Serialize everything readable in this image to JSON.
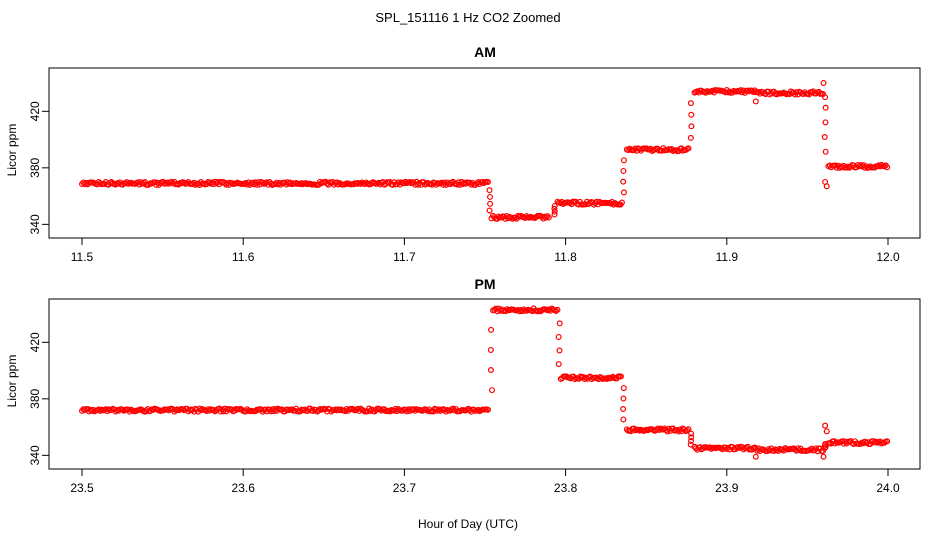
{
  "figure": {
    "title": "SPL_151116  1 Hz CO2 Zoomed",
    "xlabel": "Hour of Day (UTC)"
  },
  "colors": {
    "points": "#ff0000",
    "axes": "#000000",
    "background": "#ffffff"
  },
  "chart_data": [
    {
      "type": "scatter",
      "title": "AM",
      "xlabel": "",
      "ylabel": "Licor ppm",
      "xlim": [
        11.5,
        12.0
      ],
      "ylim": [
        336,
        445
      ],
      "xticks": [
        "11.5",
        "11.6",
        "11.7",
        "11.8",
        "11.9",
        "12.0"
      ],
      "yticks": [
        "340",
        "380",
        "420"
      ],
      "grid": false,
      "segments": [
        {
          "x": [
            11.5,
            11.752
          ],
          "y": 369
        },
        {
          "x": [
            11.754,
            11.79
          ],
          "y": 345
        },
        {
          "x": [
            11.795,
            11.835
          ],
          "y": 355
        },
        {
          "x": [
            11.838,
            11.877
          ],
          "y": 393
        },
        {
          "x": [
            11.88,
            11.918
          ],
          "y": 434
        },
        {
          "x": [
            11.918,
            11.96
          ],
          "y": 433
        },
        {
          "x": [
            11.963,
            12.0
          ],
          "y": 381
        }
      ],
      "transitions": [
        {
          "x": 11.753,
          "y": [
            369,
            345
          ]
        },
        {
          "x": 11.793,
          "y": [
            345,
            355
          ]
        },
        {
          "x": 11.836,
          "y": [
            355,
            393
          ]
        },
        {
          "x": 11.878,
          "y": [
            393,
            434
          ]
        },
        {
          "x": 11.961,
          "y": [
            433,
            381
          ]
        }
      ],
      "outliers": [
        {
          "x": 11.918,
          "y": 427
        },
        {
          "x": 11.96,
          "y": 440
        },
        {
          "x": 11.961,
          "y": 430
        },
        {
          "x": 11.962,
          "y": 367
        },
        {
          "x": 11.961,
          "y": 370
        }
      ]
    },
    {
      "type": "scatter",
      "title": "PM",
      "xlabel": "",
      "ylabel": "Licor ppm",
      "xlim": [
        23.5,
        24.0
      ],
      "ylim": [
        336,
        445
      ],
      "xticks": [
        "23.5",
        "23.6",
        "23.7",
        "23.8",
        "23.9",
        "24.0"
      ],
      "yticks": [
        "340",
        "380",
        "420"
      ],
      "grid": false,
      "segments": [
        {
          "x": [
            23.5,
            23.752
          ],
          "y": 372
        },
        {
          "x": [
            23.755,
            23.795
          ],
          "y": 443
        },
        {
          "x": [
            23.797,
            23.835
          ],
          "y": 395
        },
        {
          "x": [
            23.838,
            23.877
          ],
          "y": 358
        },
        {
          "x": [
            23.88,
            23.918
          ],
          "y": 345
        },
        {
          "x": [
            23.918,
            23.96
          ],
          "y": 344
        },
        {
          "x": [
            23.963,
            24.0
          ],
          "y": 349
        }
      ],
      "transitions": [
        {
          "x": 23.754,
          "y": [
            372,
            443
          ]
        },
        {
          "x": 23.796,
          "y": [
            443,
            395
          ]
        },
        {
          "x": 23.836,
          "y": [
            395,
            358
          ]
        },
        {
          "x": 23.878,
          "y": [
            358,
            345
          ]
        },
        {
          "x": 23.961,
          "y": [
            344,
            349
          ]
        }
      ],
      "outliers": [
        {
          "x": 23.918,
          "y": 339
        },
        {
          "x": 23.96,
          "y": 339
        },
        {
          "x": 23.961,
          "y": 361
        },
        {
          "x": 23.962,
          "y": 357
        }
      ]
    }
  ]
}
